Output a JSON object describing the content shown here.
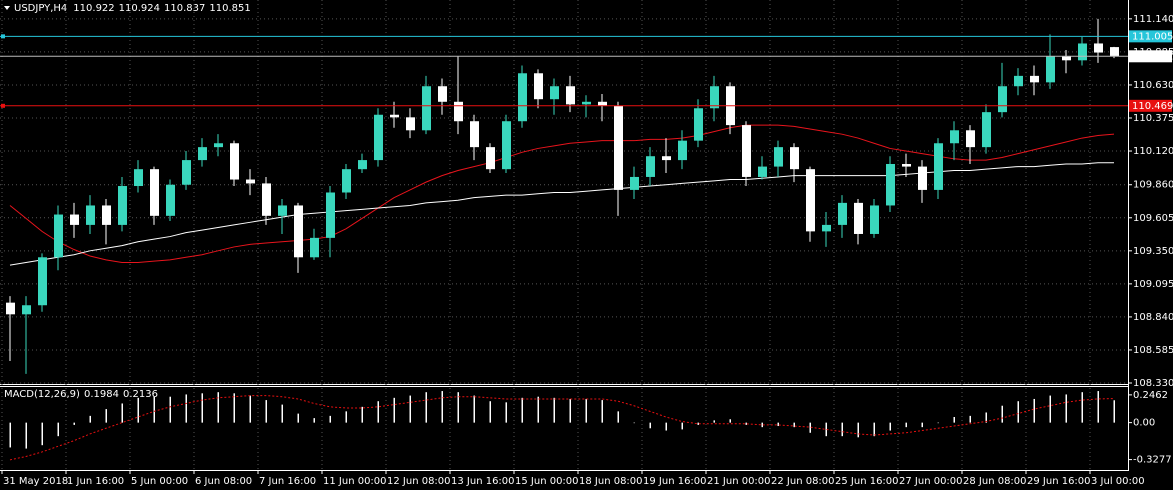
{
  "chart_data": [
    {
      "type": "candlestick",
      "title": "USDJPY,H4",
      "header_values": [
        "110.922",
        "110.924",
        "110.837",
        "110.851"
      ],
      "categories": [
        "31 May 2018",
        null,
        null,
        null,
        "1 Jun 16:00",
        null,
        null,
        null,
        "5 Jun 00:00",
        null,
        null,
        null,
        "6 Jun 08:00",
        null,
        null,
        null,
        "7 Jun 16:00",
        null,
        null,
        null,
        "11 Jun 00:00",
        null,
        null,
        null,
        "12 Jun 08:00",
        null,
        null,
        null,
        "13 Jun 16:00",
        null,
        null,
        null,
        "15 Jun 00:00",
        null,
        null,
        null,
        "18 Jun 08:00",
        null,
        null,
        null,
        "19 Jun 16:00",
        null,
        null,
        null,
        "21 Jun 00:00",
        null,
        null,
        null,
        "22 Jun 08:00",
        null,
        null,
        null,
        "25 Jun 16:00",
        null,
        null,
        null,
        "27 Jun 00:00",
        null,
        null,
        null,
        "28 Jun 08:00",
        null,
        null,
        null,
        "29 Jun 16:00",
        null,
        null,
        null,
        "3 Jul 00:00",
        null
      ],
      "open": [
        108.95,
        108.86,
        108.93,
        109.3,
        109.63,
        109.55,
        109.7,
        109.55,
        109.85,
        109.98,
        109.62,
        109.86,
        110.05,
        110.15,
        110.18,
        109.9,
        109.87,
        109.62,
        109.7,
        109.3,
        109.45,
        109.8,
        109.98,
        110.05,
        110.4,
        110.38,
        110.28,
        110.62,
        110.5,
        110.35,
        110.15,
        109.98,
        110.35,
        110.72,
        110.52,
        110.62,
        110.48,
        110.5,
        110.47,
        109.82,
        109.92,
        110.08,
        110.05,
        110.2,
        110.45,
        110.62,
        110.32,
        109.92,
        110.0,
        110.15,
        109.98,
        109.5,
        109.55,
        109.72,
        109.48,
        109.7,
        110.02,
        110.0,
        109.82,
        110.18,
        110.28,
        110.15,
        110.42,
        110.62,
        110.7,
        110.65,
        110.85,
        110.82,
        110.95,
        110.922
      ],
      "high": [
        109.0,
        109.0,
        109.33,
        109.7,
        109.72,
        109.78,
        109.75,
        109.92,
        110.05,
        110.0,
        109.9,
        110.12,
        110.22,
        110.25,
        110.2,
        109.98,
        109.92,
        109.75,
        109.72,
        109.52,
        109.85,
        110.02,
        110.1,
        110.45,
        110.5,
        110.45,
        110.7,
        110.68,
        110.85,
        110.4,
        110.18,
        110.4,
        110.78,
        110.75,
        110.68,
        110.7,
        110.55,
        110.56,
        110.5,
        110.0,
        110.15,
        110.22,
        110.28,
        110.52,
        110.7,
        110.65,
        110.35,
        110.08,
        110.2,
        110.18,
        110.0,
        109.65,
        109.78,
        109.75,
        109.75,
        110.08,
        110.1,
        110.05,
        110.22,
        110.35,
        110.32,
        110.48,
        110.8,
        110.76,
        110.78,
        111.02,
        110.9,
        111.0,
        111.14,
        110.924
      ],
      "low": [
        108.5,
        108.4,
        108.88,
        109.2,
        109.45,
        109.48,
        109.4,
        109.5,
        109.8,
        109.55,
        109.58,
        109.82,
        110.0,
        110.08,
        109.85,
        109.78,
        109.55,
        109.48,
        109.18,
        109.28,
        109.3,
        109.75,
        109.95,
        110.0,
        110.3,
        110.22,
        110.25,
        110.4,
        110.25,
        110.05,
        109.95,
        109.95,
        110.3,
        110.45,
        110.4,
        110.42,
        110.38,
        110.35,
        109.62,
        109.75,
        109.85,
        109.95,
        109.98,
        110.15,
        110.35,
        110.25,
        109.85,
        109.9,
        109.92,
        109.88,
        109.42,
        109.38,
        109.45,
        109.4,
        109.45,
        109.65,
        109.92,
        109.72,
        109.75,
        110.05,
        110.02,
        110.1,
        110.38,
        110.55,
        110.55,
        110.6,
        110.72,
        110.78,
        110.8,
        110.837
      ],
      "close": [
        108.86,
        108.93,
        109.3,
        109.63,
        109.55,
        109.7,
        109.55,
        109.85,
        109.98,
        109.62,
        109.86,
        110.05,
        110.15,
        110.18,
        109.9,
        109.87,
        109.62,
        109.7,
        109.3,
        109.45,
        109.8,
        109.98,
        110.05,
        110.4,
        110.38,
        110.28,
        110.62,
        110.5,
        110.35,
        110.15,
        109.98,
        110.35,
        110.72,
        110.52,
        110.62,
        110.48,
        110.5,
        110.47,
        109.82,
        109.92,
        110.08,
        110.05,
        110.2,
        110.45,
        110.62,
        110.32,
        109.92,
        110.0,
        110.15,
        109.98,
        109.5,
        109.55,
        109.72,
        109.48,
        109.7,
        110.02,
        110.0,
        109.82,
        110.18,
        110.28,
        110.15,
        110.42,
        110.62,
        110.7,
        110.65,
        110.85,
        110.82,
        110.95,
        110.88,
        110.851
      ],
      "up_color": "#3ad7bd",
      "down_color": "#ffffff",
      "moving_averages": [
        {
          "color": "#e8141c",
          "values": [
            109.7,
            109.6,
            109.5,
            109.42,
            109.36,
            109.31,
            109.28,
            109.26,
            109.26,
            109.27,
            109.28,
            109.3,
            109.32,
            109.35,
            109.38,
            109.4,
            109.41,
            109.42,
            109.43,
            109.44,
            109.46,
            109.52,
            109.6,
            109.68,
            109.76,
            109.82,
            109.88,
            109.93,
            109.97,
            110.0,
            110.03,
            110.07,
            110.11,
            110.14,
            110.16,
            110.18,
            110.19,
            110.2,
            110.2,
            110.2,
            110.21,
            110.21,
            110.22,
            110.24,
            110.27,
            110.3,
            110.32,
            110.32,
            110.32,
            110.31,
            110.29,
            110.27,
            110.25,
            110.22,
            110.18,
            110.14,
            110.12,
            110.1,
            110.08,
            110.06,
            110.05,
            110.05,
            110.07,
            110.1,
            110.13,
            110.16,
            110.19,
            110.22,
            110.24,
            110.25
          ]
        },
        {
          "color": "#ffffff",
          "values": [
            109.24,
            109.26,
            109.28,
            109.3,
            109.32,
            109.35,
            109.37,
            109.39,
            109.42,
            109.44,
            109.46,
            109.49,
            109.51,
            109.53,
            109.55,
            109.57,
            109.59,
            109.61,
            109.63,
            109.64,
            109.65,
            109.66,
            109.67,
            109.68,
            109.69,
            109.7,
            109.72,
            109.73,
            109.74,
            109.76,
            109.77,
            109.78,
            109.78,
            109.79,
            109.8,
            109.8,
            109.81,
            109.82,
            109.83,
            109.84,
            109.85,
            109.86,
            109.87,
            109.88,
            109.89,
            109.9,
            109.9,
            109.91,
            109.92,
            109.93,
            109.93,
            109.93,
            109.93,
            109.93,
            109.93,
            109.93,
            109.94,
            109.95,
            109.96,
            109.97,
            109.97,
            109.98,
            109.99,
            110.0,
            110.0,
            110.01,
            110.02,
            110.02,
            110.03,
            110.03
          ]
        }
      ],
      "price_lines": [
        {
          "value": 111.005,
          "color": "#26c6da"
        },
        {
          "value": 110.469,
          "color": "#e81010"
        }
      ],
      "last_price": 110.851,
      "ylim": [
        108.33,
        111.27
      ],
      "yticks": [
        {
          "value": 111.14,
          "label": "111.140"
        },
        110.885,
        {
          "value": 110.63,
          "label": "110.630"
        },
        110.375,
        {
          "value": 110.12,
          "label": "110.120"
        },
        {
          "value": 109.86,
          "label": "109.860"
        },
        109.605,
        {
          "value": 109.35,
          "label": "109.350"
        },
        109.095,
        {
          "value": 108.84,
          "label": "108.840"
        },
        108.585,
        {
          "value": 108.33,
          "label": "108.330"
        }
      ],
      "grid": true
    },
    {
      "type": "macd",
      "title": "MACD(12,26,9)",
      "header_values": [
        "0.1984",
        "0.2136"
      ],
      "values": [
        -0.22,
        -0.23,
        -0.2,
        -0.12,
        -0.02,
        0.06,
        0.12,
        0.17,
        0.22,
        0.23,
        0.23,
        0.25,
        0.26,
        0.27,
        0.26,
        0.24,
        0.2,
        0.16,
        0.08,
        0.04,
        0.06,
        0.1,
        0.14,
        0.19,
        0.22,
        0.24,
        0.27,
        0.28,
        0.27,
        0.24,
        0.19,
        0.18,
        0.22,
        0.23,
        0.22,
        0.21,
        0.21,
        0.2,
        0.1,
        0.0,
        -0.05,
        -0.07,
        -0.06,
        -0.02,
        0.02,
        0.03,
        -0.02,
        -0.04,
        -0.03,
        -0.04,
        -0.09,
        -0.12,
        -0.12,
        -0.13,
        -0.12,
        -0.07,
        -0.04,
        -0.04,
        0.0,
        0.05,
        0.06,
        0.09,
        0.15,
        0.19,
        0.21,
        0.24,
        0.25,
        0.27,
        0.28,
        0.1984
      ],
      "signal": [
        -0.33,
        -0.3,
        -0.26,
        -0.21,
        -0.16,
        -0.1,
        -0.05,
        0.0,
        0.05,
        0.1,
        0.14,
        0.17,
        0.2,
        0.22,
        0.23,
        0.24,
        0.24,
        0.23,
        0.21,
        0.17,
        0.14,
        0.13,
        0.13,
        0.14,
        0.16,
        0.18,
        0.2,
        0.22,
        0.23,
        0.23,
        0.22,
        0.21,
        0.21,
        0.21,
        0.21,
        0.21,
        0.21,
        0.21,
        0.19,
        0.15,
        0.1,
        0.05,
        0.01,
        -0.01,
        -0.01,
        -0.01,
        -0.01,
        -0.02,
        -0.02,
        -0.03,
        -0.04,
        -0.06,
        -0.08,
        -0.1,
        -0.11,
        -0.1,
        -0.09,
        -0.07,
        -0.05,
        -0.03,
        -0.01,
        0.01,
        0.04,
        0.08,
        0.12,
        0.15,
        0.18,
        0.2,
        0.21,
        0.2136
      ],
      "color": "#ffffff",
      "signal_color": "#e81010",
      "ylim": [
        -0.42,
        0.316
      ],
      "yticks": [
        0.2462,
        {
          "value": 0,
          "label": "0.00"
        },
        -0.3277
      ],
      "grid": false
    }
  ]
}
